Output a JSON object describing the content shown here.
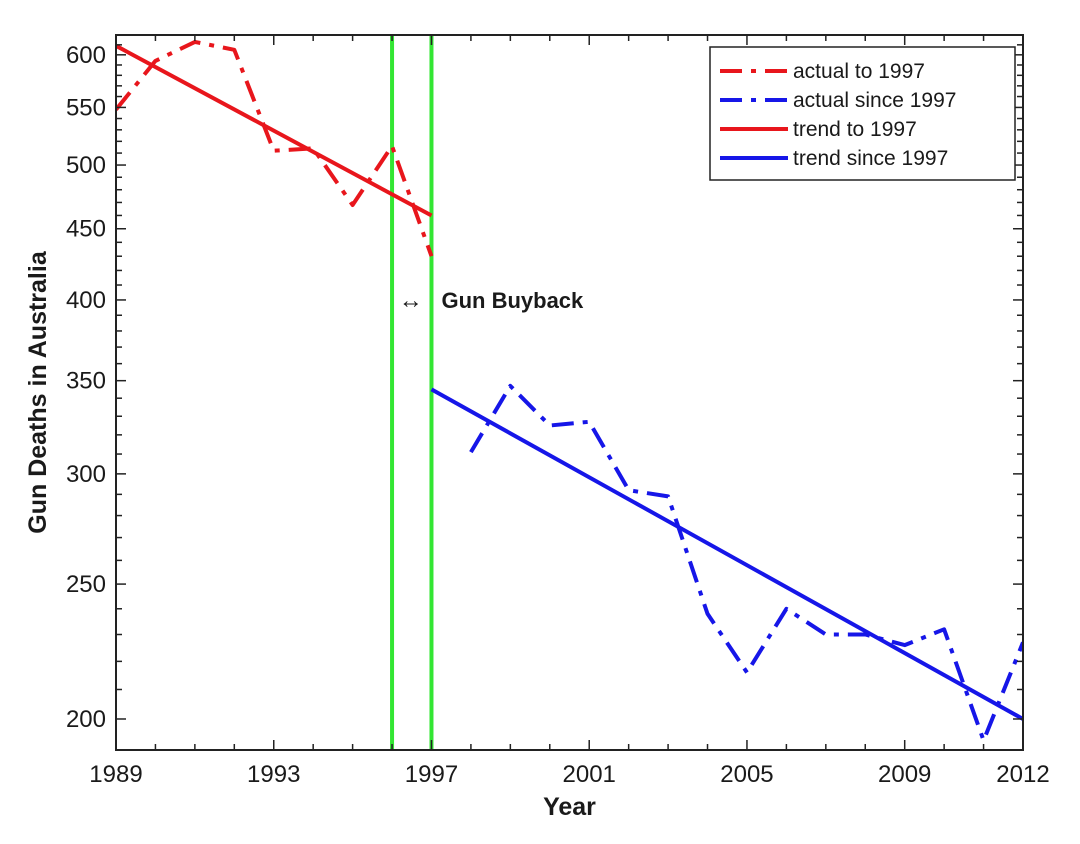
{
  "chart_data": {
    "type": "line",
    "xlabel": "Year",
    "ylabel": "Gun Deaths in Australia",
    "y_scale": "log",
    "xlim": [
      1989,
      2012
    ],
    "ylim": [
      190,
      620
    ],
    "x_ticks": [
      1989,
      1993,
      1997,
      2001,
      2005,
      2009,
      2012
    ],
    "y_ticks": [
      200,
      250,
      300,
      350,
      400,
      450,
      500,
      550,
      600
    ],
    "grid": false,
    "legend_position": "top-right",
    "series": [
      {
        "name": "actual to 1997",
        "style": "dashdot",
        "color": "#e8161c",
        "x": [
          1989,
          1990,
          1991,
          1992,
          1993,
          1994,
          1995,
          1996,
          1997
        ],
        "y": [
          548,
          594,
          613,
          605,
          512,
          514,
          468,
          516,
          430
        ]
      },
      {
        "name": "actual since 1997",
        "style": "dashdot",
        "color": "#1616e8",
        "x": [
          1998,
          1999,
          2000,
          2001,
          2002,
          2003,
          2004,
          2005,
          2006,
          2007,
          2008,
          2009,
          2010,
          2011,
          2012
        ],
        "y": [
          311,
          347,
          325,
          327,
          292,
          289,
          238,
          216,
          240,
          230,
          230,
          226,
          232,
          193,
          227
        ]
      },
      {
        "name": "trend to 1997",
        "style": "solid",
        "color": "#e8161c",
        "x": [
          1989,
          1997
        ],
        "y": [
          609,
          460
        ]
      },
      {
        "name": "trend since 1997",
        "style": "solid",
        "color": "#1616e8",
        "x": [
          1997,
          2012
        ],
        "y": [
          345,
          200
        ]
      }
    ],
    "vertical_lines": [
      {
        "x": 1996,
        "color": "#33e633"
      },
      {
        "x": 1997,
        "color": "#33e633"
      }
    ],
    "annotation": {
      "arrow": "↔",
      "text": "Gun Buyback",
      "x": 1996.5,
      "y": 400
    }
  }
}
